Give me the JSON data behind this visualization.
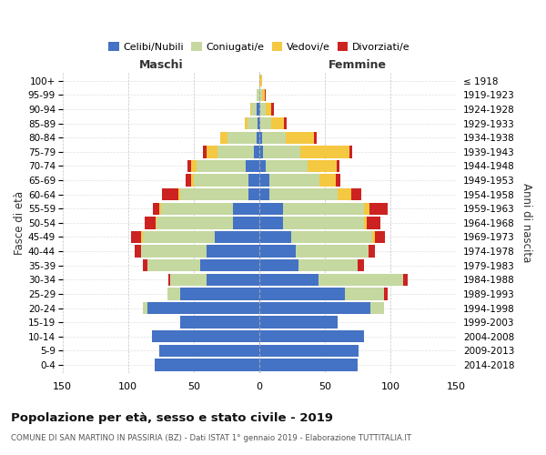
{
  "age_groups": [
    "0-4",
    "5-9",
    "10-14",
    "15-19",
    "20-24",
    "25-29",
    "30-34",
    "35-39",
    "40-44",
    "45-49",
    "50-54",
    "55-59",
    "60-64",
    "65-69",
    "70-74",
    "75-79",
    "80-84",
    "85-89",
    "90-94",
    "95-99",
    "100+"
  ],
  "birth_years": [
    "2014-2018",
    "2009-2013",
    "2004-2008",
    "1999-2003",
    "1994-1998",
    "1989-1993",
    "1984-1988",
    "1979-1983",
    "1974-1978",
    "1969-1973",
    "1964-1968",
    "1959-1963",
    "1954-1958",
    "1949-1953",
    "1944-1948",
    "1939-1943",
    "1934-1938",
    "1929-1933",
    "1924-1928",
    "1919-1923",
    "≤ 1918"
  ],
  "male": {
    "celibi": [
      80,
      76,
      82,
      60,
      85,
      60,
      40,
      45,
      40,
      34,
      20,
      20,
      8,
      8,
      10,
      4,
      2,
      1,
      2,
      0,
      0
    ],
    "coniugati": [
      0,
      0,
      0,
      0,
      4,
      10,
      28,
      40,
      50,
      55,
      58,
      55,
      52,
      42,
      38,
      28,
      22,
      8,
      4,
      2,
      0
    ],
    "vedovi": [
      0,
      0,
      0,
      0,
      0,
      0,
      0,
      0,
      0,
      1,
      1,
      1,
      2,
      2,
      4,
      8,
      6,
      2,
      1,
      0,
      0
    ],
    "divorziati": [
      0,
      0,
      0,
      0,
      0,
      0,
      1,
      4,
      5,
      8,
      8,
      5,
      12,
      4,
      3,
      3,
      0,
      0,
      0,
      0,
      0
    ]
  },
  "female": {
    "nubili": [
      75,
      76,
      80,
      60,
      85,
      65,
      45,
      30,
      28,
      24,
      18,
      18,
      8,
      8,
      5,
      3,
      2,
      1,
      1,
      0,
      0
    ],
    "coniugate": [
      0,
      0,
      0,
      0,
      10,
      30,
      65,
      45,
      55,
      62,
      62,
      62,
      52,
      38,
      32,
      28,
      18,
      8,
      4,
      2,
      0
    ],
    "vedove": [
      0,
      0,
      0,
      0,
      0,
      0,
      0,
      0,
      0,
      2,
      2,
      4,
      10,
      12,
      22,
      38,
      22,
      10,
      4,
      2,
      2
    ],
    "divorziate": [
      0,
      0,
      0,
      0,
      0,
      3,
      3,
      5,
      5,
      8,
      10,
      14,
      8,
      4,
      2,
      2,
      2,
      2,
      2,
      1,
      0
    ]
  },
  "colors": {
    "celibi": "#4472c4",
    "coniugati": "#c5d8a0",
    "vedovi": "#f5c842",
    "divorziati": "#cc2222"
  },
  "xlim": 150,
  "title": "Popolazione per età, sesso e stato civile - 2019",
  "subtitle": "COMUNE DI SAN MARTINO IN PASSIRIA (BZ) - Dati ISTAT 1° gennaio 2019 - Elaborazione TUTTITALIA.IT",
  "xlabel_left": "Maschi",
  "xlabel_right": "Femmine",
  "ylabel_left": "Fasce di età",
  "ylabel_right": "Anni di nascita",
  "legend_labels": [
    "Celibi/Nubili",
    "Coniugati/e",
    "Vedovi/e",
    "Divorziati/e"
  ]
}
